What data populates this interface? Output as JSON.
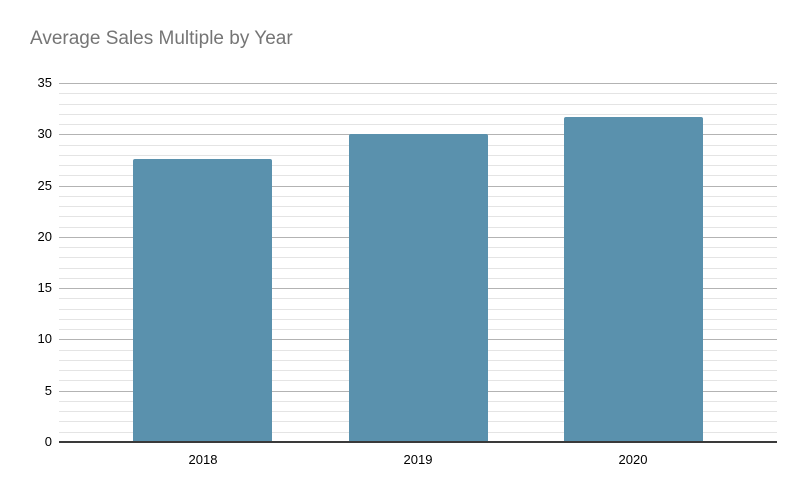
{
  "chart_data": {
    "type": "bar",
    "title": "Average Sales Multiple by Year",
    "categories": [
      "2018",
      "2019",
      "2020"
    ],
    "values": [
      27.6,
      30,
      31.7
    ],
    "xlabel": "",
    "ylabel": "",
    "ylim": [
      0,
      35
    ],
    "y_major_step": 5,
    "y_minor_step": 1,
    "y_tick_labels": [
      "0",
      "5",
      "10",
      "15",
      "20",
      "25",
      "30",
      "35"
    ],
    "grid": "horizontal major+minor",
    "legend": "none",
    "colors": {
      "bar": "#5A91AD",
      "title_text": "#757575",
      "tick_text": "#000000",
      "major_gridline": "#B3B3B3",
      "minor_gridline": "#E4E4E4",
      "baseline": "#3A3A3A",
      "background": "#FFFFFF"
    }
  }
}
